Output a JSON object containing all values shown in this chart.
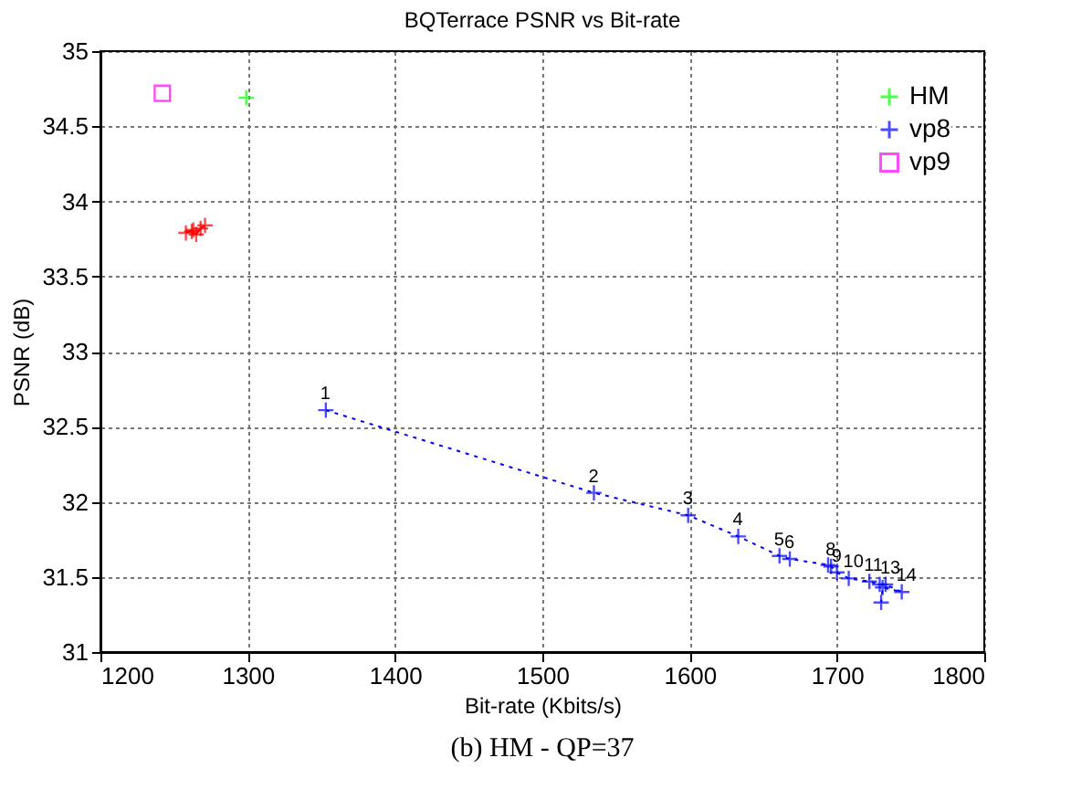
{
  "chart_data": {
    "type": "line",
    "title": "BQTerrace PSNR vs Bit-rate",
    "xlabel": "Bit-rate (Kbits/s)",
    "ylabel": "PSNR (dB)",
    "xlim": [
      1200,
      1800
    ],
    "xticks": [
      1200,
      1300,
      1400,
      1500,
      1600,
      1700,
      1800
    ],
    "ylim": [
      31,
      35
    ],
    "yticks": [
      31,
      31.5,
      32,
      32.5,
      33,
      33.5,
      34,
      34.5,
      35
    ],
    "grid": true,
    "legend": "top right",
    "series": [
      {
        "color": "#ff0000",
        "marker": "cross",
        "line_style": "solid",
        "x": [
          1258,
          1263,
          1262,
          1265,
          1268,
          1271
        ],
        "values": [
          33.79,
          33.81,
          33.8,
          33.78,
          33.82,
          33.84
        ]
      },
      {
        "name": "HM",
        "color": "#00ff00",
        "marker": "cross",
        "line_style": "dashed",
        "x": [
          1299
        ],
        "values": [
          34.69
        ]
      },
      {
        "name": "vp8",
        "color": "#0000ff",
        "marker": "cross",
        "line_style": "dotted",
        "x": [
          1353,
          1535,
          1599,
          1633,
          1661,
          1668,
          1694,
          1696,
          1700,
          1708,
          1722,
          1729,
          1733,
          1744,
          1731,
          1730
        ],
        "values": [
          32.61,
          32.06,
          31.91,
          31.77,
          31.64,
          31.62,
          31.58,
          31.57,
          31.53,
          31.49,
          31.47,
          31.45,
          31.45,
          31.4,
          31.43,
          31.33
        ]
      },
      {
        "name": "vp9",
        "color": "#ff00ff",
        "marker": "square",
        "line_style": "dotted",
        "x": [
          1242
        ],
        "values": [
          34.72
        ]
      }
    ],
    "annotations": [
      {
        "text": "1",
        "x": 1353,
        "y": 32.61
      },
      {
        "text": "2",
        "x": 1535,
        "y": 32.06
      },
      {
        "text": "3",
        "x": 1599,
        "y": 31.91
      },
      {
        "text": "4",
        "x": 1633,
        "y": 31.77
      },
      {
        "text": "5",
        "x": 1661,
        "y": 31.64
      },
      {
        "text": "6",
        "x": 1668,
        "y": 31.62
      },
      {
        "text": "8",
        "x": 1696,
        "y": 31.57
      },
      {
        "text": "9",
        "x": 1700,
        "y": 31.53
      },
      {
        "text": "10",
        "x": 1708,
        "y": 31.49
      },
      {
        "text": "11",
        "x": 1722,
        "y": 31.47
      },
      {
        "text": "13",
        "x": 1733,
        "y": 31.45
      },
      {
        "text": "14",
        "x": 1744,
        "y": 31.4
      },
      "(b) HM - QP=37"
    ]
  }
}
